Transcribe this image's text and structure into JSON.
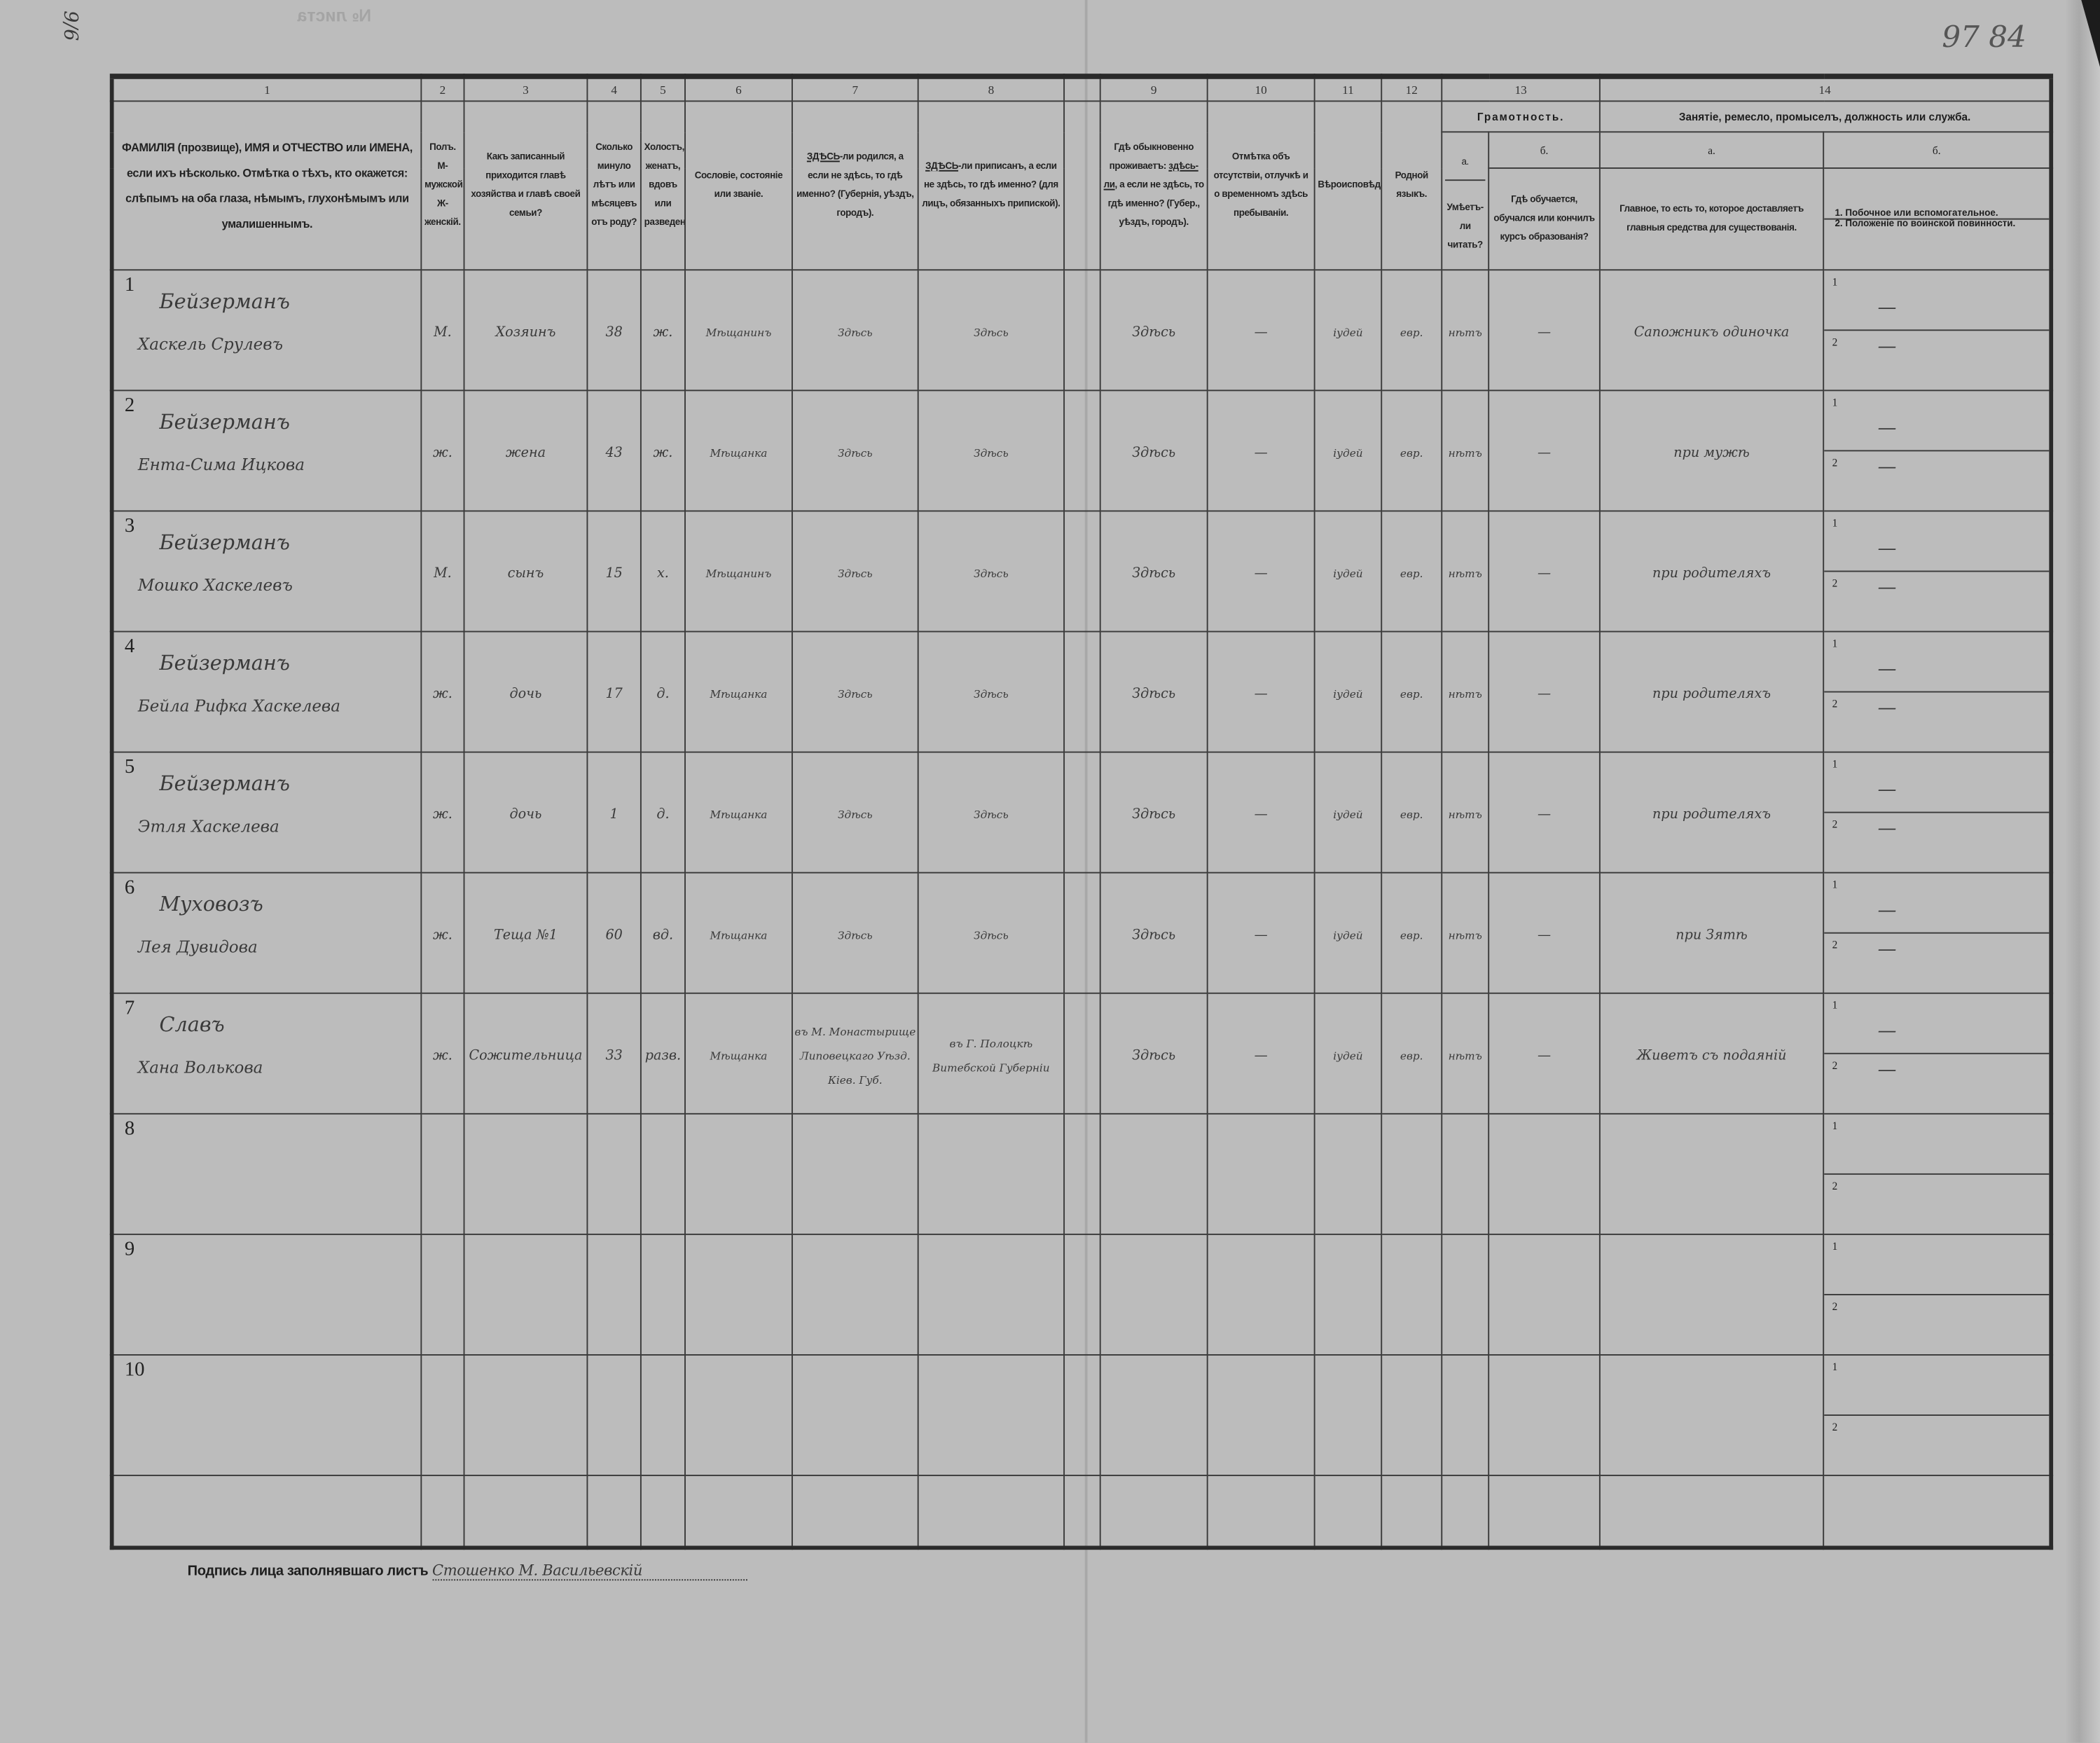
{
  "margin_marks": {
    "left": "9/6",
    "right": "97 84",
    "bleed_through": "№ листа"
  },
  "column_numbers": [
    "1",
    "2",
    "3",
    "4",
    "5",
    "6",
    "7",
    "8",
    "9",
    "10",
    "11",
    "12",
    "13",
    "14"
  ],
  "headers": {
    "c1": "ФАМИЛІЯ (прозвище), ИМЯ и ОТЧЕСТВО или ИМЕНА, если ихъ нѣсколько. Отмѣтка о тѣхъ, кто окажется: слѣпымъ на оба глаза, нѣмымъ, глухонѣмымъ или умалишеннымъ.",
    "c2": "Полъ. М-мужской. Ж-женскій.",
    "c3": "Какъ записанный приходится главѣ хозяйства и главѣ своей семьи?",
    "c4": "Сколько минуло лѣтъ или мѣсяцевъ отъ роду?",
    "c5": "Холостъ, женатъ, вдовъ или разведенъ.",
    "c6": "Сословіе, состояніе или званіе.",
    "c7_ul": "ЗДѢСЬ",
    "c7": "-ли родился, а если не здѣсь, то гдѣ именно? (Губернія, уѣздъ, городъ).",
    "c8_ul": "ЗДѢСЬ",
    "c8": "-ли приписанъ, а если не здѣсь, то гдѣ именно? (для лицъ, обязанныхъ припиской).",
    "c9_pre": "Гдѣ обыкновенно проживаетъ:",
    "c9_ul": "здѣсь-ли",
    "c9": ", а если не здѣсь, то гдѣ именно? (Губер., уѣздъ, городъ).",
    "c10": "Отмѣтка объ отсутствіи, отлучкѣ и о временномъ здѣсь пребываніи.",
    "c11": "Вѣроисповѣданіе.",
    "c12": "Родной языкъ.",
    "c13": "Грамотность.",
    "c13a_label": "а.",
    "c13a": "Умѣетъ-ли читать?",
    "c13b_label": "б.",
    "c13b": "Гдѣ обучается, обучался или кончилъ курсъ образованія?",
    "c14": "Занятіе, ремесло, промыселъ, должность или служба.",
    "c14a_label": "а.",
    "c14a": "Главное, то есть то, которое доставляетъ главныя средства для существованія.",
    "c14b_label": "б.",
    "c14b_1": "1. Побочное или вспомогательное.",
    "c14b_2": "2. Положеніе по воинской повинности."
  },
  "sub_line_numbers": [
    "1",
    "2"
  ],
  "rows": [
    {
      "n": "1",
      "surname": "Бейзерманъ",
      "given": "Хаскель Срулевъ",
      "sex": "М.",
      "relation": "Хозяинъ",
      "age": "38",
      "marital": "ж.",
      "estate": "Мѣщанинъ",
      "born": "Здѣсь",
      "registered": "Здѣсь",
      "resides": "Здѣсь",
      "absence": "—",
      "religion": "іудей",
      "language": "евр.",
      "literate": "нѣтъ",
      "education": "—",
      "occupation": "Сапожникъ одиночка",
      "secondary": "—",
      "military": "—"
    },
    {
      "n": "2",
      "surname": "Бейзерманъ",
      "given": "Ента-Сима Ицкова",
      "sex": "ж.",
      "relation": "жена",
      "age": "43",
      "marital": "ж.",
      "estate": "Мѣщанка",
      "born": "Здѣсь",
      "registered": "Здѣсь",
      "resides": "Здѣсь",
      "absence": "—",
      "religion": "іудей",
      "language": "евр.",
      "literate": "нѣтъ",
      "education": "—",
      "occupation": "при мужѣ",
      "secondary": "—",
      "military": "—"
    },
    {
      "n": "3",
      "surname": "Бейзерманъ",
      "given": "Мошко Хаскелевъ",
      "sex": "М.",
      "relation": "сынъ",
      "age": "15",
      "marital": "х.",
      "estate": "Мѣщанинъ",
      "born": "Здѣсь",
      "registered": "Здѣсь",
      "resides": "Здѣсь",
      "absence": "—",
      "religion": "іудей",
      "language": "евр.",
      "literate": "нѣтъ",
      "education": "—",
      "occupation": "при родителяхъ",
      "secondary": "—",
      "military": "—"
    },
    {
      "n": "4",
      "surname": "Бейзерманъ",
      "given": "Бейла Рифка Хаскелева",
      "sex": "ж.",
      "relation": "дочь",
      "age": "17",
      "marital": "д.",
      "estate": "Мѣщанка",
      "born": "Здѣсь",
      "registered": "Здѣсь",
      "resides": "Здѣсь",
      "absence": "—",
      "religion": "іудей",
      "language": "евр.",
      "literate": "нѣтъ",
      "education": "—",
      "occupation": "при родителяхъ",
      "secondary": "—",
      "military": "—"
    },
    {
      "n": "5",
      "surname": "Бейзерманъ",
      "given": "Этля Хаскелева",
      "sex": "ж.",
      "relation": "дочь",
      "age": "1",
      "marital": "д.",
      "estate": "Мѣщанка",
      "born": "Здѣсь",
      "registered": "Здѣсь",
      "resides": "Здѣсь",
      "absence": "—",
      "religion": "іудей",
      "language": "евр.",
      "literate": "нѣтъ",
      "education": "—",
      "occupation": "при родителяхъ",
      "secondary": "—",
      "military": "—"
    },
    {
      "n": "6",
      "surname": "Муховозъ",
      "given": "Лея Дувидова",
      "sex": "ж.",
      "relation": "Теща №1",
      "age": "60",
      "marital": "вд.",
      "estate": "Мѣщанка",
      "born": "Здѣсь",
      "registered": "Здѣсь",
      "resides": "Здѣсь",
      "absence": "—",
      "religion": "іудей",
      "language": "евр.",
      "literate": "нѣтъ",
      "education": "—",
      "occupation": "при Зятѣ",
      "secondary": "—",
      "military": "—"
    },
    {
      "n": "7",
      "surname": "Славъ",
      "given": "Хана Волькова",
      "sex": "ж.",
      "relation": "Сожительница",
      "age": "33",
      "marital": "разв.",
      "estate": "Мѣщанка",
      "born": "въ М. Монастырище Липовецкаго Уѣзд. Кiев. Губ.",
      "registered": "въ Г. Полоцкѣ Витебской Губерніи",
      "resides": "Здѣсь",
      "absence": "—",
      "religion": "іудей",
      "language": "евр.",
      "literate": "нѣтъ",
      "education": "—",
      "occupation": "Живетъ съ подаяній",
      "secondary": "—",
      "military": "—"
    },
    {
      "n": "8"
    },
    {
      "n": "9"
    },
    {
      "n": "10"
    }
  ],
  "footer": {
    "signature_label": "Подпись лица заполнявшаго листъ",
    "signature": "Стошенко М. Васильевскій"
  }
}
